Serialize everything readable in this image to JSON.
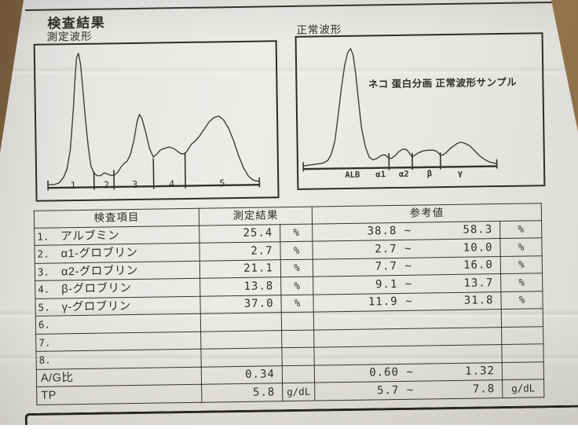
{
  "header": {
    "title": "検査結果"
  },
  "charts": {
    "measured": {
      "label": "測定波形",
      "x_labels": [
        {
          "text": "1",
          "x": 15
        },
        {
          "text": "2",
          "x": 28.8
        },
        {
          "text": "3",
          "x": 40.7
        },
        {
          "text": "4",
          "x": 56
        },
        {
          "text": "5",
          "x": 77
        }
      ],
      "baseline": [
        4.5,
        92.5
      ],
      "dividers": [
        [
          23.7,
          10
        ],
        [
          32,
          11
        ],
        [
          48.5,
          19
        ],
        [
          61.7,
          23
        ]
      ],
      "edge_ticks": [
        [
          4.5,
          4
        ],
        [
          92.5,
          4
        ]
      ],
      "waveform": [
        [
          4.5,
          1
        ],
        [
          7,
          1
        ],
        [
          9,
          2
        ],
        [
          11,
          6
        ],
        [
          12.5,
          12
        ],
        [
          14,
          26
        ],
        [
          15.5,
          55
        ],
        [
          16.5,
          80
        ],
        [
          17.2,
          93
        ],
        [
          18,
          96
        ],
        [
          18.8,
          88
        ],
        [
          19.6,
          70
        ],
        [
          20.5,
          48
        ],
        [
          21.5,
          28
        ],
        [
          22.5,
          14
        ],
        [
          23.7,
          9
        ],
        [
          25,
          7
        ],
        [
          26.5,
          7
        ],
        [
          28,
          9
        ],
        [
          29.5,
          8
        ],
        [
          31,
          7
        ],
        [
          32,
          7
        ],
        [
          33.5,
          9
        ],
        [
          35,
          13
        ],
        [
          36.5,
          16
        ],
        [
          37.5,
          17
        ],
        [
          39,
          22
        ],
        [
          40.5,
          32
        ],
        [
          42,
          46
        ],
        [
          43,
          51
        ],
        [
          44,
          48
        ],
        [
          45.5,
          38
        ],
        [
          47,
          26
        ],
        [
          48.5,
          20
        ],
        [
          50,
          22
        ],
        [
          51.5,
          25
        ],
        [
          53,
          26
        ],
        [
          55,
          27
        ],
        [
          57,
          26
        ],
        [
          58.5,
          24
        ],
        [
          60,
          22
        ],
        [
          61.7,
          22
        ],
        [
          63,
          25
        ],
        [
          64.5,
          29
        ],
        [
          66,
          31
        ],
        [
          68,
          35
        ],
        [
          70,
          40
        ],
        [
          72,
          45
        ],
        [
          74,
          48
        ],
        [
          76,
          49
        ],
        [
          78,
          46
        ],
        [
          80,
          40
        ],
        [
          82,
          31
        ],
        [
          84,
          20
        ],
        [
          86,
          11
        ],
        [
          88,
          5
        ],
        [
          90,
          2
        ],
        [
          92.5,
          1
        ]
      ]
    },
    "normal": {
      "label": "正常波形",
      "annotation": "ネコ 蛋白分画 正常波形サンプル",
      "x_labels": [
        {
          "text": "ALB",
          "x": 22
        },
        {
          "text": "α1",
          "x": 33.5
        },
        {
          "text": "α2",
          "x": 43
        },
        {
          "text": "β",
          "x": 53.5
        },
        {
          "text": "γ",
          "x": 66
        }
      ],
      "baseline": [
        2,
        81
      ],
      "dividers": [
        [
          37,
          10
        ],
        [
          46.5,
          10
        ],
        [
          58,
          10
        ]
      ],
      "edge_ticks": [
        [
          2,
          4
        ],
        [
          81,
          4
        ]
      ],
      "waveform": [
        [
          2,
          1
        ],
        [
          4,
          1.5
        ],
        [
          6,
          2
        ],
        [
          8,
          2.5
        ],
        [
          10,
          3
        ],
        [
          12,
          5
        ],
        [
          13.5,
          10
        ],
        [
          15,
          20
        ],
        [
          16.5,
          40
        ],
        [
          18,
          62
        ],
        [
          19.5,
          80
        ],
        [
          20.8,
          90
        ],
        [
          22,
          93
        ],
        [
          23,
          88
        ],
        [
          24,
          72
        ],
        [
          25,
          50
        ],
        [
          26,
          30
        ],
        [
          27.5,
          15
        ],
        [
          29,
          7
        ],
        [
          30.5,
          5
        ],
        [
          32,
          6
        ],
        [
          33.5,
          8
        ],
        [
          35,
          9
        ],
        [
          36,
          8
        ],
        [
          37,
          6
        ],
        [
          38,
          6
        ],
        [
          39.5,
          8
        ],
        [
          41,
          11
        ],
        [
          42.5,
          13
        ],
        [
          44,
          13
        ],
        [
          45,
          11
        ],
        [
          46,
          8
        ],
        [
          46.5,
          7
        ],
        [
          47.5,
          8
        ],
        [
          49,
          10
        ],
        [
          51,
          11.5
        ],
        [
          53,
          12
        ],
        [
          55,
          12
        ],
        [
          56.5,
          11
        ],
        [
          58,
          8
        ],
        [
          59,
          8
        ],
        [
          60.5,
          10
        ],
        [
          62,
          13
        ],
        [
          63.5,
          15
        ],
        [
          65,
          17
        ],
        [
          66.5,
          18
        ],
        [
          68,
          17
        ],
        [
          70,
          15
        ],
        [
          72,
          11
        ],
        [
          74,
          7
        ],
        [
          76,
          4
        ],
        [
          78,
          2
        ],
        [
          80,
          1
        ],
        [
          81,
          0.5
        ]
      ]
    }
  },
  "table": {
    "headers": {
      "item": "検査項目",
      "result": "測定結果",
      "reference": "参考値"
    },
    "rows": [
      {
        "no": "1.",
        "item": "アルブミン",
        "value": "25.4",
        "unit": "%",
        "ref_low": "38.8",
        "tilde": "~",
        "ref_high": "58.3",
        "ref_unit": "%"
      },
      {
        "no": "2.",
        "item": "α1-グロブリン",
        "value": "2.7",
        "unit": "%",
        "ref_low": "2.7",
        "tilde": "~",
        "ref_high": "10.0",
        "ref_unit": "%"
      },
      {
        "no": "3.",
        "item": "α2-グロブリン",
        "value": "21.1",
        "unit": "%",
        "ref_low": "7.7",
        "tilde": "~",
        "ref_high": "16.0",
        "ref_unit": "%"
      },
      {
        "no": "4.",
        "item": "β-グロブリン",
        "value": "13.8",
        "unit": "%",
        "ref_low": "9.1",
        "tilde": "~",
        "ref_high": "13.7",
        "ref_unit": "%"
      },
      {
        "no": "5.",
        "item": "γ-グロブリン",
        "value": "37.0",
        "unit": "%",
        "ref_low": "11.9",
        "tilde": "~",
        "ref_high": "31.8",
        "ref_unit": "%"
      },
      {
        "no": "6.",
        "item": "",
        "value": "",
        "unit": "",
        "ref_low": "",
        "tilde": "",
        "ref_high": "",
        "ref_unit": ""
      },
      {
        "no": "7.",
        "item": "",
        "value": "",
        "unit": "",
        "ref_low": "",
        "tilde": "",
        "ref_high": "",
        "ref_unit": ""
      },
      {
        "no": "8.",
        "item": "",
        "value": "",
        "unit": "",
        "ref_low": "",
        "tilde": "",
        "ref_high": "",
        "ref_unit": ""
      },
      {
        "no": "",
        "item": "A/G比",
        "value": "0.34",
        "unit": "",
        "ref_low": "0.60",
        "tilde": "~",
        "ref_high": "1.32",
        "ref_unit": ""
      },
      {
        "no": "",
        "item": "TP",
        "value": "5.8",
        "unit": "g/dL",
        "ref_low": "5.7",
        "tilde": "~",
        "ref_high": "7.8",
        "ref_unit": "g/dL"
      }
    ]
  }
}
